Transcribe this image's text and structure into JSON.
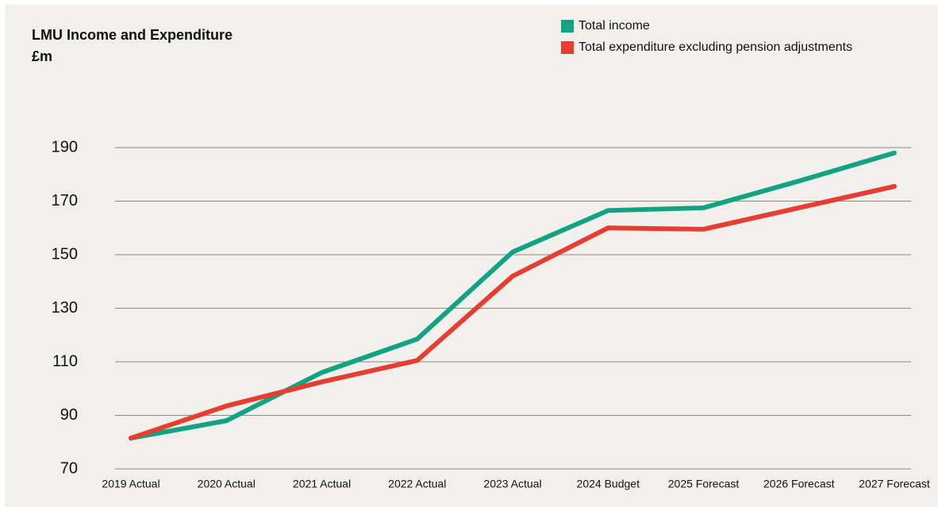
{
  "chart_data": {
    "type": "line",
    "title": "LMU Income and Expenditure",
    "ylabel": "£m",
    "categories": [
      "2019 Actual",
      "2020 Actual",
      "2021 Actual",
      "2022 Actual",
      "2023 Actual",
      "2024 Budget",
      "2025 Forecast",
      "2026 Forecast",
      "2027 Forecast"
    ],
    "series": [
      {
        "name": "Total income",
        "color": "#12a383",
        "values": [
          81.5,
          88,
          106,
          118.5,
          151,
          166.5,
          167.5,
          177.5,
          188
        ]
      },
      {
        "name": "Total expenditure excluding pension adjustments",
        "color": "#e63e32",
        "values": [
          81.5,
          93.5,
          102.5,
          110.5,
          142,
          160,
          159.5,
          167.5,
          175.5
        ]
      }
    ],
    "ylim": [
      70,
      190
    ],
    "yticks": [
      70,
      90,
      110,
      130,
      150,
      170,
      190
    ],
    "grid": true,
    "legend": "top-right"
  }
}
